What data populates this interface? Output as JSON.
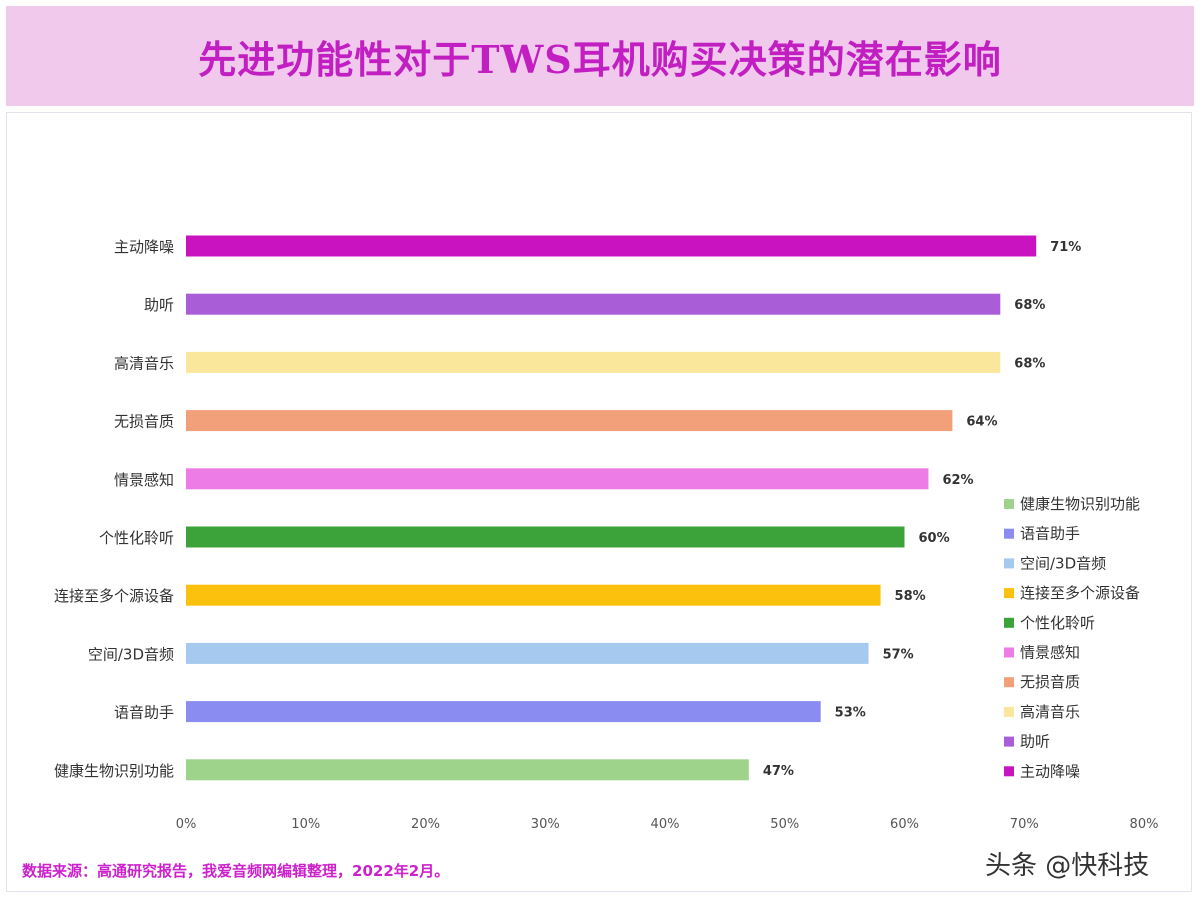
{
  "page": {
    "source_note": "数据来源：高通研究报告，我爱音频网编辑整理，2022年2月。",
    "watermark": "头条 @快科技"
  },
  "chart_data": {
    "type": "bar",
    "orientation": "horizontal",
    "title": "先进功能性对于TWS耳机购买决策的潜在影响",
    "xlabel": "",
    "ylabel": "",
    "xlim": [
      0,
      80
    ],
    "x_ticks": [
      "0%",
      "10%",
      "20%",
      "30%",
      "40%",
      "50%",
      "60%",
      "70%",
      "80%"
    ],
    "value_suffix": "%",
    "grid": false,
    "legend_position": "right",
    "categories": [
      "主动降噪",
      "助听",
      "高清音乐",
      "无损音质",
      "情景感知",
      "个性化聆听",
      "连接至多个源设备",
      "空间/3D音频",
      "语音助手",
      "健康生物识别功能"
    ],
    "values": [
      71,
      68,
      68,
      64,
      62,
      60,
      58,
      57,
      53,
      47
    ],
    "colors": [
      "#c912c0",
      "#a95ed8",
      "#fbe79c",
      "#f2a07a",
      "#ee7ce6",
      "#3ca33a",
      "#fcc10c",
      "#a6c9ef",
      "#8b8cf1",
      "#9ed38c"
    ],
    "legend": [
      "健康生物识别功能",
      "语音助手",
      "空间/3D音频",
      "连接至多个源设备",
      "个性化聆听",
      "情景感知",
      "无损音质",
      "高清音乐",
      "助听",
      "主动降噪"
    ]
  }
}
